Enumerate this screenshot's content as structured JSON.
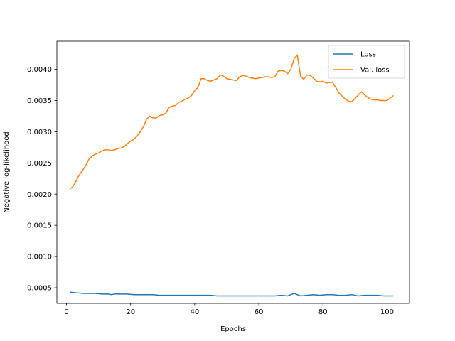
{
  "chart_data": {
    "type": "line",
    "xlabel": "Epochs",
    "ylabel": "Negative log-likelihood",
    "xlim": [
      -3,
      107
    ],
    "ylim": [
      0.00025,
      0.00445
    ],
    "xticks": [
      0,
      20,
      40,
      60,
      80,
      100
    ],
    "yticks": [
      0.0005,
      0.001,
      0.0015,
      0.002,
      0.0025,
      0.003,
      0.0035,
      0.004
    ],
    "ytick_labels": [
      "0.0005",
      "0.0010",
      "0.0015",
      "0.0020",
      "0.0025",
      "0.0030",
      "0.0035",
      "0.0040"
    ],
    "legend_position": "top-right",
    "series": [
      {
        "name": "Loss",
        "color": "#1f77b4",
        "x": [
          1,
          3,
          5,
          7,
          9,
          11,
          13,
          14,
          15,
          17,
          19,
          21,
          23,
          25,
          27,
          29,
          31,
          33,
          35,
          37,
          39,
          41,
          43,
          45,
          47,
          49,
          51,
          53,
          55,
          57,
          59,
          61,
          63,
          65,
          67,
          69,
          71,
          73,
          75,
          77,
          79,
          81,
          83,
          85,
          87,
          89,
          91,
          93,
          95,
          97,
          99,
          101,
          102
        ],
        "y": [
          0.00043,
          0.00042,
          0.00041,
          0.00041,
          0.00041,
          0.0004,
          0.0004,
          0.00039,
          0.0004,
          0.0004,
          0.0004,
          0.00039,
          0.00039,
          0.00039,
          0.00039,
          0.00038,
          0.00038,
          0.00038,
          0.00038,
          0.00038,
          0.00038,
          0.00038,
          0.00038,
          0.00038,
          0.00037,
          0.00037,
          0.00037,
          0.00037,
          0.00037,
          0.00037,
          0.00037,
          0.00037,
          0.00037,
          0.00037,
          0.00038,
          0.00037,
          0.00041,
          0.00037,
          0.00038,
          0.00039,
          0.00038,
          0.00039,
          0.00039,
          0.00038,
          0.00038,
          0.00039,
          0.00037,
          0.00038,
          0.00038,
          0.00038,
          0.00037,
          0.00037,
          0.00037
        ]
      },
      {
        "name": "Val. loss",
        "color": "#ff7f0e",
        "x": [
          1,
          2,
          3,
          4,
          5,
          6,
          7,
          8,
          9,
          10,
          11,
          12,
          13,
          14,
          15,
          16,
          17,
          18,
          19,
          20,
          21,
          22,
          23,
          24,
          25,
          26,
          27,
          28,
          29,
          30,
          31,
          32,
          33,
          34,
          35,
          36,
          37,
          38,
          39,
          40,
          41,
          42,
          43,
          44,
          45,
          46,
          47,
          48,
          49,
          50,
          51,
          52,
          53,
          54,
          55,
          56,
          57,
          58,
          59,
          60,
          61,
          62,
          63,
          64,
          65,
          66,
          67,
          68,
          69,
          70,
          71,
          72,
          73,
          74,
          75,
          76,
          77,
          78,
          79,
          80,
          81,
          82,
          83,
          84,
          85,
          86,
          87,
          88,
          89,
          90,
          91,
          92,
          93,
          94,
          95,
          96,
          97,
          98,
          99,
          100,
          101,
          102
        ],
        "y": [
          0.00208,
          0.00212,
          0.00221,
          0.00231,
          0.00238,
          0.00246,
          0.00256,
          0.00261,
          0.00264,
          0.00266,
          0.00269,
          0.00271,
          0.00271,
          0.0027,
          0.00271,
          0.00273,
          0.00274,
          0.00276,
          0.00281,
          0.00285,
          0.00288,
          0.00293,
          0.003,
          0.00308,
          0.0032,
          0.00325,
          0.00322,
          0.00322,
          0.00326,
          0.00327,
          0.0033,
          0.00339,
          0.00341,
          0.00342,
          0.00347,
          0.00349,
          0.00352,
          0.00354,
          0.00358,
          0.00366,
          0.00371,
          0.00385,
          0.00385,
          0.00382,
          0.00381,
          0.00383,
          0.00385,
          0.00391,
          0.00389,
          0.00385,
          0.00384,
          0.00383,
          0.00382,
          0.00388,
          0.0039,
          0.00389,
          0.00387,
          0.00386,
          0.00385,
          0.00386,
          0.00387,
          0.00388,
          0.00388,
          0.00387,
          0.00388,
          0.00397,
          0.00398,
          0.00397,
          0.00393,
          0.004,
          0.00417,
          0.00423,
          0.00389,
          0.00384,
          0.00391,
          0.0039,
          0.00386,
          0.00381,
          0.0038,
          0.00381,
          0.00378,
          0.00379,
          0.00379,
          0.00371,
          0.00362,
          0.00357,
          0.00352,
          0.00349,
          0.00348,
          0.00353,
          0.00359,
          0.00364,
          0.00359,
          0.00355,
          0.00352,
          0.00351,
          0.00351,
          0.0035,
          0.0035,
          0.0035,
          0.00354,
          0.00358
        ]
      }
    ]
  }
}
